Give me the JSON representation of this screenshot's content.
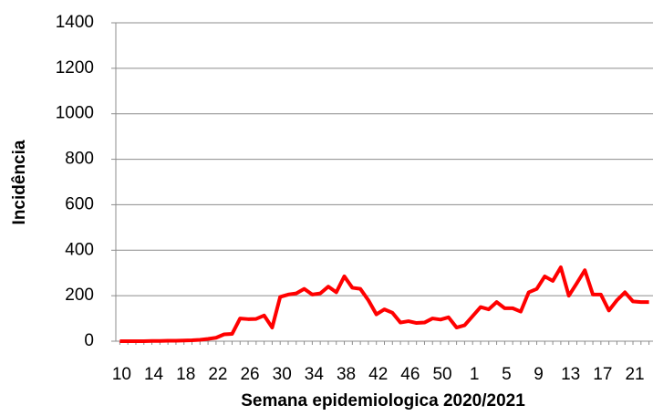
{
  "chart_data": {
    "type": "line",
    "x_label": "Semana epidemiologica 2020/2021",
    "y_label": "Incidência",
    "categories": [
      10,
      null,
      null,
      null,
      14,
      null,
      null,
      null,
      18,
      null,
      null,
      null,
      22,
      null,
      null,
      null,
      26,
      null,
      null,
      null,
      30,
      null,
      null,
      null,
      34,
      null,
      null,
      null,
      38,
      null,
      null,
      null,
      42,
      null,
      null,
      null,
      46,
      null,
      null,
      null,
      50,
      null,
      null,
      null,
      1,
      null,
      null,
      null,
      5,
      null,
      null,
      null,
      9,
      null,
      null,
      null,
      13,
      null,
      null,
      null,
      17,
      null,
      null,
      null,
      21,
      null,
      null
    ],
    "series": [
      {
        "name": "Incidência",
        "color": "#ff0000",
        "values": [
          0,
          0,
          0,
          0,
          1,
          1,
          2,
          2,
          3,
          4,
          6,
          10,
          15,
          30,
          32,
          100,
          97,
          98,
          113,
          60,
          195,
          205,
          210,
          230,
          205,
          210,
          240,
          215,
          285,
          235,
          230,
          180,
          118,
          140,
          125,
          82,
          88,
          80,
          82,
          100,
          95,
          105,
          60,
          70,
          110,
          150,
          140,
          172,
          145,
          145,
          130,
          215,
          230,
          285,
          265,
          325,
          200,
          255,
          312,
          205,
          205,
          135,
          180,
          215,
          175,
          172,
          172
        ]
      }
    ],
    "ylim": [
      0,
      1400
    ],
    "yticks": [
      0,
      200,
      400,
      600,
      800,
      1000,
      1200,
      1400
    ],
    "grid": true
  }
}
